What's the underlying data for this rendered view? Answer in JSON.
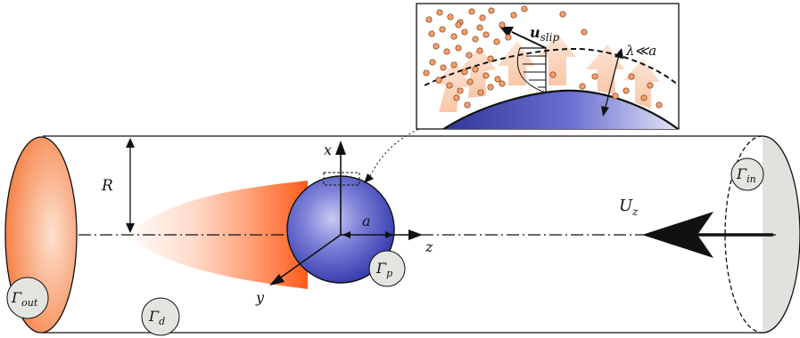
{
  "labels": {
    "radius": "R",
    "particle_radius": "a",
    "axis_x": "x",
    "axis_y": "y",
    "axis_z": "z",
    "velocity_main": "U",
    "velocity_sub": "z",
    "gamma_symbol": "Γ",
    "gamma_in_sub": "in",
    "gamma_out_sub": "out",
    "gamma_d_sub": "d",
    "gamma_p_sub": "p",
    "slip_main": "u",
    "slip_sub": "slip",
    "mean_free_path": "λ≪a"
  },
  "colors": {
    "particle_blue": "#3a3fb0",
    "plume_orange": "#ff6a2a",
    "outlet_orange": "#f57a3c",
    "inlet_gray": "#dfe2dd",
    "gas_molecule": "#f4a06a",
    "label_circle": "#e3e6e0"
  },
  "icons": [
    "flow-arrow-icon",
    "coordinate-axes-icon",
    "zoom-connector-icon"
  ]
}
